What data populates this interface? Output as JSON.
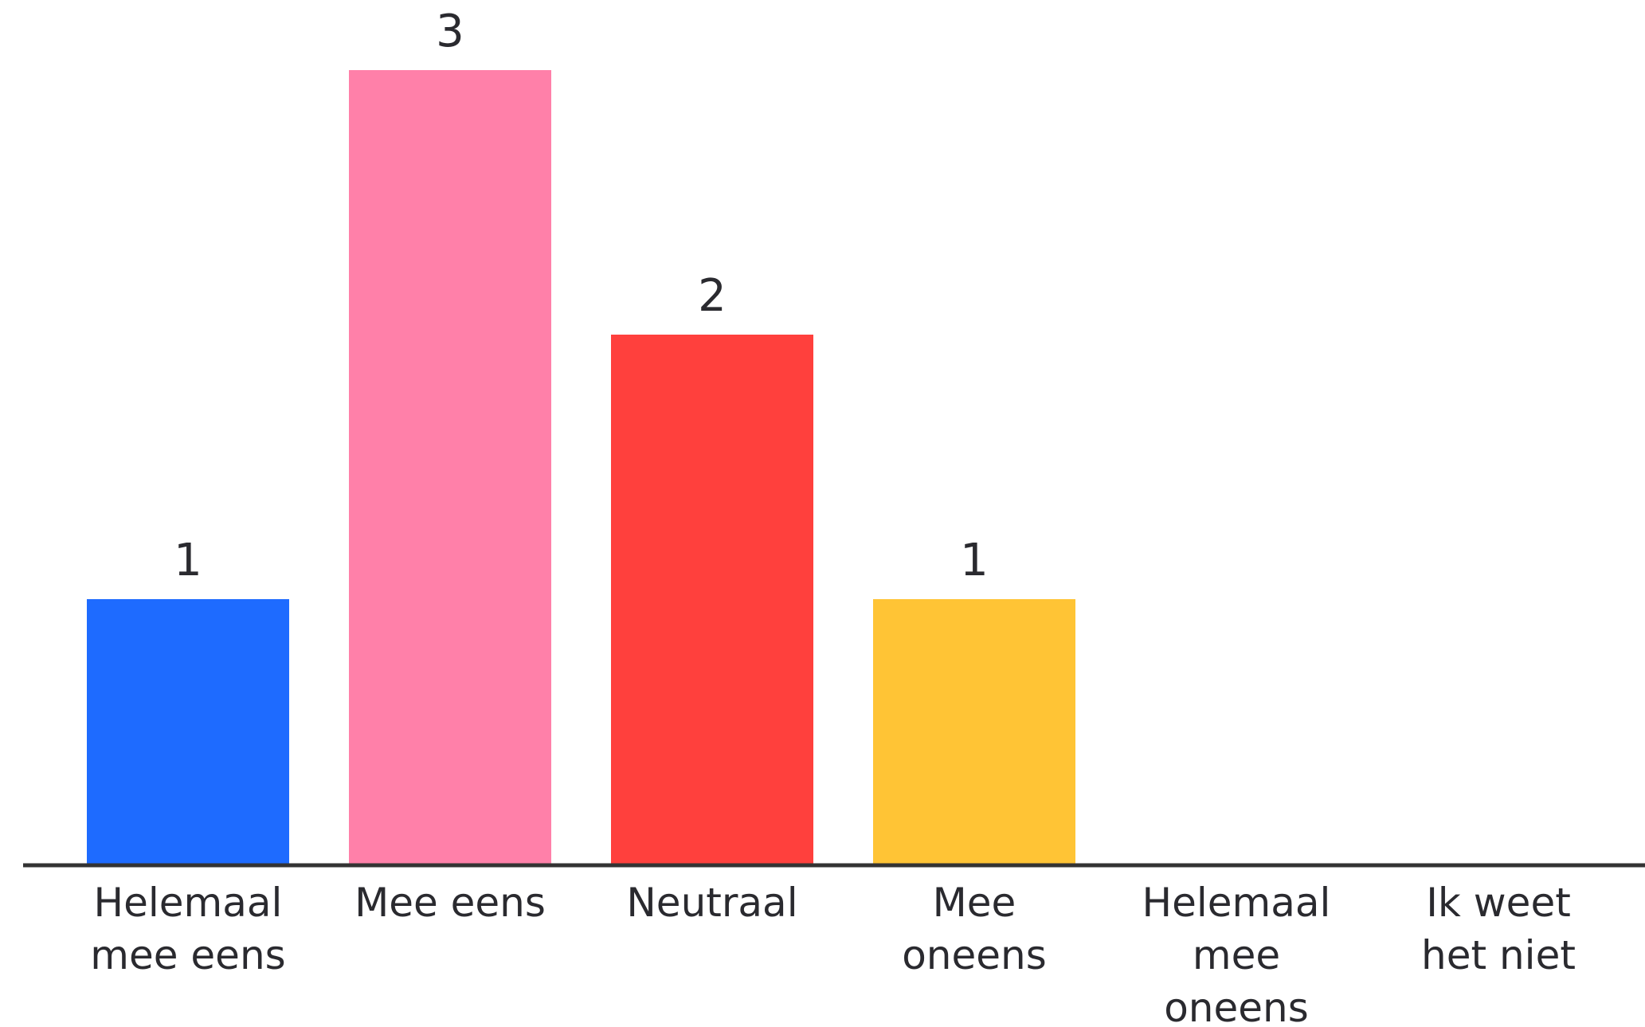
{
  "chart_data": {
    "type": "bar",
    "categories": [
      "Helemaal\nmee eens",
      "Mee eens",
      "Neutraal",
      "Mee\noneens",
      "Helemaal\nmee\noneens",
      "Ik weet\nhet niet"
    ],
    "values": [
      1,
      3,
      2,
      1,
      0,
      0
    ],
    "colors": [
      "#1e6bff",
      "#ff80a9",
      "#ff403d",
      "#ffc435",
      "#cccccc",
      "#cccccc"
    ],
    "ylim": [
      0,
      3
    ]
  }
}
